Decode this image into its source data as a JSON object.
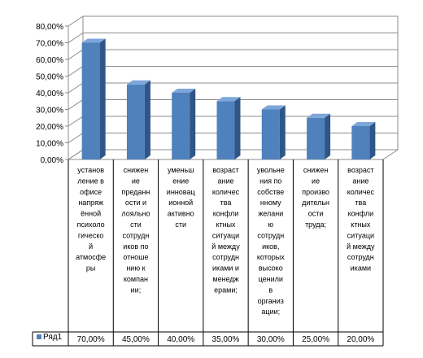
{
  "chart_data": {
    "type": "bar",
    "three_d": true,
    "grid": true,
    "legend_placement": "data-table-left",
    "ylim": [
      0,
      80
    ],
    "y_ticks": [
      "0,00%",
      "10,00%",
      "20,00%",
      "30,00%",
      "40,00%",
      "50,00%",
      "60,00%",
      "70,00%",
      "80,00%"
    ],
    "categories": [
      [
        "установ",
        "ление в",
        "офисе",
        "напряж",
        "ённой",
        "психоло",
        "гическо",
        "й",
        "атмосфе",
        "ры"
      ],
      [
        "снижен",
        "ие",
        "преданн",
        "ости и",
        "лояльно",
        "сти",
        "сотрудн",
        "иков по",
        "отноше",
        "нию к",
        "компан",
        "ии;"
      ],
      [
        "уменьш",
        "ение",
        "инновац",
        "ионной",
        "активно",
        "сти"
      ],
      [
        "возраст",
        "ание",
        "количес",
        "тва",
        "конфли",
        "ктных",
        "ситуаци",
        "й между",
        "сотрудн",
        "иками и",
        "менедж",
        "ерами;"
      ],
      [
        "увольне",
        "ния по",
        "собстве",
        "нному",
        "желани",
        "ю",
        "сотрудн",
        "иков,",
        "которых",
        "высоко",
        "ценили",
        "в",
        "организ",
        "ации;"
      ],
      [
        "снижен",
        "ие",
        "произво",
        "дительн",
        "ости",
        "труда;"
      ],
      [
        "возраст",
        "ание",
        "количес",
        "тва",
        "конфли",
        "ктных",
        "ситуаци",
        "й между",
        "сотрудн",
        "иками"
      ]
    ],
    "series": [
      {
        "name": "Ряд1",
        "values": [
          70,
          45,
          40,
          35,
          30,
          25,
          20
        ],
        "value_labels": [
          "70,00%",
          "45,00%",
          "40,00%",
          "35,00%",
          "30,00%",
          "25,00%",
          "20,00%"
        ],
        "color": "#4f81bd"
      }
    ]
  }
}
